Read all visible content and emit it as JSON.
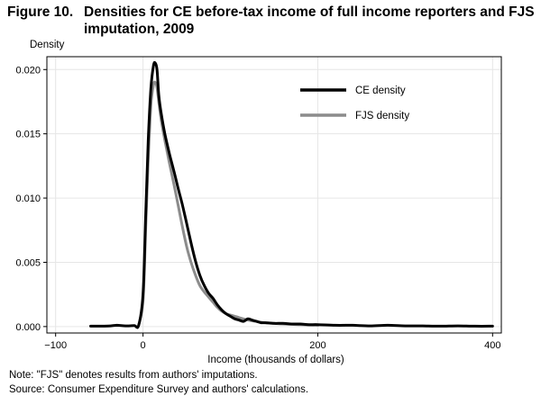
{
  "header": {
    "figure_number": "Figure 10.",
    "title_line1": "Densities for CE before-tax income of full income reporters and FJS",
    "title_line2": "imputation, 2009"
  },
  "notes": {
    "note": "Note: \"FJS\" denotes results from authors' imputations.",
    "source": "Source: Consumer Expenditure  Survey and authors'  calculations."
  },
  "chart_data": {
    "type": "line",
    "title": "Densities for CE before-tax income of full income reporters and FJS imputation, 2009",
    "xlabel": "Income (thousands  of dollars)",
    "ylabel": "Density",
    "xlim": [
      -110,
      410
    ],
    "ylim": [
      -0.0005,
      0.021
    ],
    "xticks": [
      -100,
      0,
      200,
      400
    ],
    "xtick_labels": [
      "−100",
      "0",
      "200",
      "400"
    ],
    "yticks": [
      0.0,
      0.005,
      0.01,
      0.015,
      0.02
    ],
    "ytick_labels": [
      "0.000",
      "0.005",
      "0.010",
      "0.015",
      "0.020"
    ],
    "grid": true,
    "legend_position": "top-right",
    "series": [
      {
        "name": "CE density",
        "color": "#000000",
        "x": [
          -60,
          -40,
          -30,
          -20,
          -10,
          -5,
          0,
          3,
          6,
          9,
          12,
          14,
          16,
          18,
          21,
          25,
          30,
          35,
          40,
          45,
          50,
          55,
          60,
          65,
          70,
          75,
          80,
          85,
          90,
          95,
          100,
          105,
          110,
          115,
          120,
          125,
          130,
          135,
          140,
          150,
          160,
          170,
          180,
          190,
          200,
          220,
          240,
          260,
          280,
          300,
          320,
          340,
          360,
          380,
          400
        ],
        "y": [
          3e-05,
          4e-05,
          0.0001,
          5e-05,
          8e-05,
          0.0001,
          0.0025,
          0.0085,
          0.0145,
          0.0185,
          0.0203,
          0.0205,
          0.02,
          0.018,
          0.0165,
          0.015,
          0.0135,
          0.0122,
          0.0108,
          0.0095,
          0.008,
          0.0065,
          0.0051,
          0.004,
          0.0032,
          0.0026,
          0.0022,
          0.0017,
          0.0013,
          0.001,
          0.0008,
          0.0006,
          0.0005,
          0.0004,
          0.0006,
          0.0005,
          0.0004,
          0.0003,
          0.0003,
          0.00025,
          0.00025,
          0.0002,
          0.0002,
          0.00015,
          0.00015,
          0.0001,
          0.0001,
          5e-05,
          0.0001,
          5e-05,
          5e-05,
          3e-05,
          5e-05,
          3e-05,
          3e-05
        ]
      },
      {
        "name": "FJS density",
        "color": "#8c8c8c",
        "x": [
          -5,
          0,
          3,
          6,
          9,
          12,
          14,
          16,
          18,
          21,
          25,
          30,
          35,
          40,
          45,
          50,
          55,
          60,
          65,
          70,
          75,
          80,
          85,
          90,
          95,
          100,
          105,
          110,
          120,
          130,
          140,
          160,
          180,
          200
        ],
        "y": [
          0.0001,
          0.002,
          0.0075,
          0.013,
          0.0172,
          0.0188,
          0.019,
          0.0186,
          0.0175,
          0.016,
          0.0145,
          0.0128,
          0.0112,
          0.0095,
          0.0078,
          0.0062,
          0.005,
          0.004,
          0.0032,
          0.0027,
          0.0023,
          0.0019,
          0.0015,
          0.0012,
          0.001,
          0.0009,
          0.0008,
          0.0007,
          0.0005,
          0.0004,
          0.0003,
          0.0002,
          0.00015,
          0.0001
        ]
      }
    ]
  }
}
